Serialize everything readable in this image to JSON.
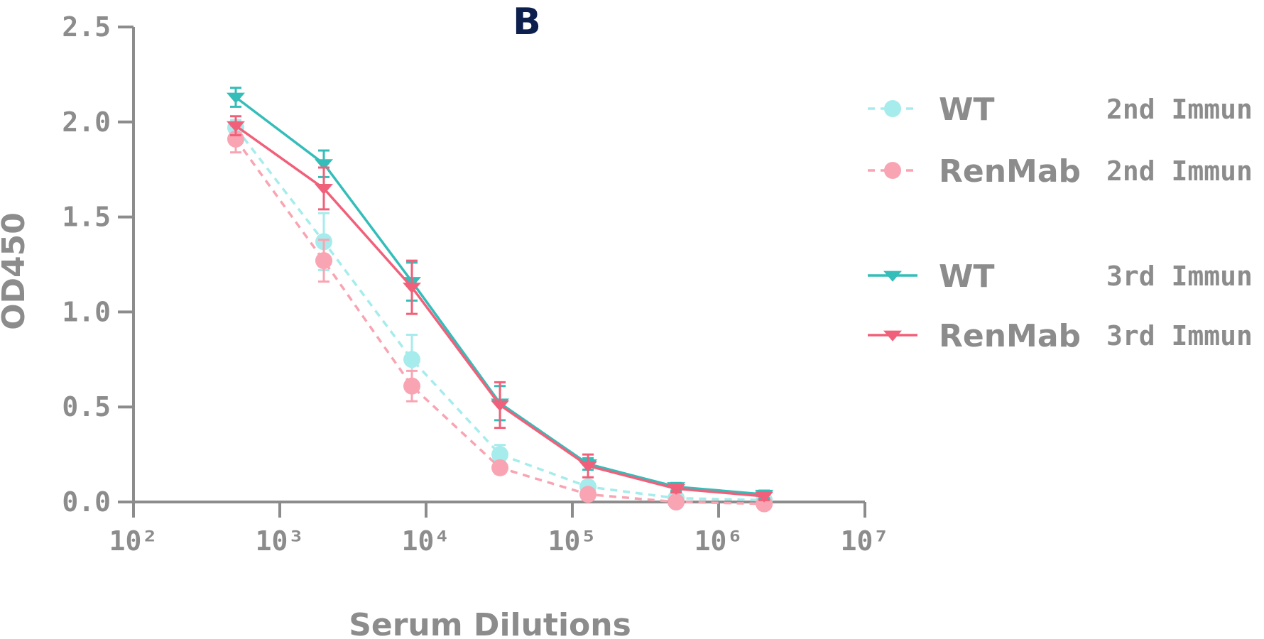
{
  "chart_data": {
    "type": "line",
    "title": "B",
    "xlabel": "Serum Dilutions",
    "ylabel": "OD450",
    "xscale": "log",
    "xlim": [
      100,
      10000000
    ],
    "ylim": [
      0,
      2.5
    ],
    "x_tick_labels": [
      "10²",
      "10³",
      "10⁴",
      "10⁵",
      "10⁶",
      "10⁷"
    ],
    "x_tick_values": [
      100,
      1000,
      10000,
      100000,
      1000000,
      10000000
    ],
    "y_ticks": [
      "0.0",
      "0.5",
      "1.0",
      "1.5",
      "2.0",
      "2.5"
    ],
    "y_tick_values": [
      0,
      0.5,
      1.0,
      1.5,
      2.0,
      2.5
    ],
    "legend_position": "right",
    "x": [
      500,
      2000,
      8000,
      32000,
      128000,
      512000,
      2048000
    ],
    "series": [
      {
        "name": "WT",
        "label2": "2nd Immun",
        "color": "#a6ecec",
        "line_style": "dashed",
        "marker": "circle",
        "values": [
          1.97,
          1.37,
          0.75,
          0.25,
          0.08,
          0.02,
          0.01
        ],
        "errors": [
          0.04,
          0.15,
          0.13,
          0.05,
          0.03,
          0.02,
          0.02
        ]
      },
      {
        "name": "RenMab",
        "label2": "2nd Immun",
        "color": "#f9a4b2",
        "line_style": "dashed",
        "marker": "circle",
        "values": [
          1.91,
          1.27,
          0.61,
          0.18,
          0.04,
          0.0,
          -0.01
        ],
        "errors": [
          0.07,
          0.11,
          0.08,
          0.03,
          0.02,
          0.02,
          0.02
        ]
      },
      {
        "name": "WT",
        "label2": "3rd Immun",
        "color": "#34bdb9",
        "line_style": "solid",
        "marker": "triangle-down",
        "values": [
          2.13,
          1.78,
          1.16,
          0.52,
          0.2,
          0.08,
          0.04
        ],
        "errors": [
          0.05,
          0.07,
          0.1,
          0.09,
          0.03,
          0.02,
          0.02
        ]
      },
      {
        "name": "RenMab",
        "label2": "3rd Immun",
        "color": "#f1607a",
        "line_style": "solid",
        "marker": "triangle-down",
        "values": [
          1.98,
          1.65,
          1.13,
          0.51,
          0.19,
          0.07,
          0.03
        ],
        "errors": [
          0.05,
          0.11,
          0.14,
          0.12,
          0.06,
          0.02,
          0.02
        ]
      }
    ]
  }
}
